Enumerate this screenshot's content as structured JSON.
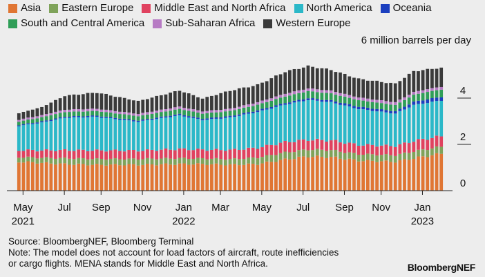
{
  "legend": [
    {
      "key": "asia",
      "label": "Asia",
      "color": "#e07634"
    },
    {
      "key": "eastern_europe",
      "label": "Eastern Europe",
      "color": "#7fa35a"
    },
    {
      "key": "mena",
      "label": "Middle East and North Africa",
      "color": "#e0425f"
    },
    {
      "key": "north_america",
      "label": "North America",
      "color": "#2bb8c8"
    },
    {
      "key": "oceania",
      "label": "Oceania",
      "color": "#1b3fbf"
    },
    {
      "key": "south_central_america",
      "label": "South and Central America",
      "color": "#2f9e57"
    },
    {
      "key": "sub_saharan_africa",
      "label": "Sub-Saharan Africa",
      "color": "#b77bc4"
    },
    {
      "key": "western_europe",
      "label": "Western Europe",
      "color": "#3a3a3a"
    }
  ],
  "chart_data": {
    "type": "bar",
    "stacked": true,
    "unit": "6 million barrels per day",
    "ylim": [
      0,
      6
    ],
    "yticks": [
      0,
      2,
      4
    ],
    "x_month_labels": [
      {
        "label": "May",
        "year": "2021",
        "week": 0
      },
      {
        "label": "Jul",
        "year": "",
        "week": 9
      },
      {
        "label": "Sep",
        "year": "",
        "week": 17
      },
      {
        "label": "Nov",
        "year": "",
        "week": 26
      },
      {
        "label": "Jan",
        "year": "2022",
        "week": 35
      },
      {
        "label": "Mar",
        "year": "",
        "week": 43
      },
      {
        "label": "May",
        "year": "",
        "week": 52
      },
      {
        "label": "Jul",
        "year": "",
        "week": 61
      },
      {
        "label": "Sep",
        "year": "",
        "week": 70
      },
      {
        "label": "Nov",
        "year": "",
        "week": 78
      },
      {
        "label": "Jan",
        "year": "2023",
        "week": 87
      }
    ],
    "keyframes": [
      {
        "week": 0,
        "asia": 1.25,
        "eastern_europe": 0.2,
        "mena": 0.3,
        "north_america": 1.05,
        "oceania": 0.04,
        "south_central_america": 0.15,
        "sub_saharan_africa": 0.08,
        "western_europe": 0.28
      },
      {
        "week": 5,
        "asia": 1.2,
        "eastern_europe": 0.22,
        "mena": 0.32,
        "north_america": 1.2,
        "oceania": 0.05,
        "south_central_america": 0.18,
        "sub_saharan_africa": 0.09,
        "western_europe": 0.35
      },
      {
        "week": 10,
        "asia": 1.15,
        "eastern_europe": 0.25,
        "mena": 0.35,
        "north_america": 1.4,
        "oceania": 0.05,
        "south_central_america": 0.2,
        "sub_saharan_africa": 0.1,
        "western_europe": 0.6
      },
      {
        "week": 17,
        "asia": 1.12,
        "eastern_europe": 0.25,
        "mena": 0.37,
        "north_america": 1.45,
        "oceania": 0.05,
        "south_central_america": 0.2,
        "sub_saharan_africa": 0.1,
        "western_europe": 0.7
      },
      {
        "week": 26,
        "asia": 1.12,
        "eastern_europe": 0.25,
        "mena": 0.36,
        "north_america": 1.25,
        "oceania": 0.05,
        "south_central_america": 0.19,
        "sub_saharan_africa": 0.1,
        "western_europe": 0.55
      },
      {
        "week": 35,
        "asia": 1.15,
        "eastern_europe": 0.25,
        "mena": 0.4,
        "north_america": 1.45,
        "oceania": 0.06,
        "south_central_america": 0.22,
        "sub_saharan_africa": 0.1,
        "western_europe": 0.7
      },
      {
        "week": 40,
        "asia": 1.15,
        "eastern_europe": 0.24,
        "mena": 0.38,
        "north_america": 1.28,
        "oceania": 0.06,
        "south_central_america": 0.22,
        "sub_saharan_africa": 0.1,
        "western_europe": 0.55
      },
      {
        "week": 46,
        "asia": 1.12,
        "eastern_europe": 0.24,
        "mena": 0.4,
        "north_america": 1.4,
        "oceania": 0.06,
        "south_central_america": 0.22,
        "sub_saharan_africa": 0.1,
        "western_europe": 0.78
      },
      {
        "week": 52,
        "asia": 1.15,
        "eastern_europe": 0.28,
        "mena": 0.42,
        "north_america": 1.55,
        "oceania": 0.07,
        "south_central_america": 0.24,
        "sub_saharan_africa": 0.11,
        "western_europe": 0.75
      },
      {
        "week": 58,
        "asia": 1.35,
        "eastern_europe": 0.3,
        "mena": 0.45,
        "north_america": 1.62,
        "oceania": 0.07,
        "south_central_america": 0.28,
        "sub_saharan_africa": 0.12,
        "western_europe": 0.95
      },
      {
        "week": 63,
        "asia": 1.48,
        "eastern_europe": 0.3,
        "mena": 0.42,
        "north_america": 1.72,
        "oceania": 0.08,
        "south_central_america": 0.3,
        "sub_saharan_africa": 0.12,
        "western_europe": 0.96
      },
      {
        "week": 68,
        "asia": 1.45,
        "eastern_europe": 0.3,
        "mena": 0.42,
        "north_america": 1.65,
        "oceania": 0.08,
        "south_central_america": 0.3,
        "sub_saharan_africa": 0.12,
        "western_europe": 0.9
      },
      {
        "week": 74,
        "asia": 1.3,
        "eastern_europe": 0.28,
        "mena": 0.4,
        "north_america": 1.55,
        "oceania": 0.1,
        "south_central_america": 0.28,
        "sub_saharan_africa": 0.12,
        "western_europe": 0.8
      },
      {
        "week": 82,
        "asia": 1.25,
        "eastern_europe": 0.28,
        "mena": 0.4,
        "north_america": 1.4,
        "oceania": 0.1,
        "south_central_america": 0.27,
        "sub_saharan_africa": 0.12,
        "western_europe": 0.8
      },
      {
        "week": 86,
        "asia": 1.4,
        "eastern_europe": 0.3,
        "mena": 0.45,
        "north_america": 1.55,
        "oceania": 0.14,
        "south_central_america": 0.3,
        "sub_saharan_africa": 0.12,
        "western_europe": 0.9
      },
      {
        "week": 89,
        "asia": 1.5,
        "eastern_europe": 0.3,
        "mena": 0.45,
        "north_america": 1.55,
        "oceania": 0.15,
        "south_central_america": 0.32,
        "sub_saharan_africa": 0.12,
        "western_europe": 0.85
      },
      {
        "week": 92,
        "asia": 1.6,
        "eastern_europe": 0.3,
        "mena": 0.45,
        "north_america": 1.55,
        "oceania": 0.15,
        "south_central_america": 0.32,
        "sub_saharan_africa": 0.12,
        "western_europe": 0.82
      }
    ],
    "num_weeks": 93
  },
  "footer": {
    "source": "Source: BloombergNEF, Bloomberg Terminal",
    "note_line1": "Note: The model does not account for load factors of aircraft, route inefficiencies",
    "note_line2": "or cargo flights. MENA stands for Middle East and North Africa."
  },
  "brand": "BloombergNEF"
}
